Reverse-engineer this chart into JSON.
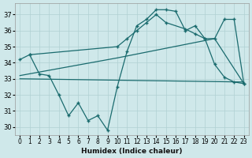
{
  "xlabel": "Humidex (Indice chaleur)",
  "bg_color": "#cfe8ea",
  "grid_color": "#b0d0d3",
  "line_color": "#1a6b6e",
  "xlim": [
    -0.5,
    23.5
  ],
  "ylim": [
    29.5,
    37.7
  ],
  "yticks": [
    30,
    31,
    32,
    33,
    34,
    35,
    36,
    37
  ],
  "xticks": [
    0,
    1,
    2,
    3,
    4,
    5,
    6,
    7,
    8,
    9,
    10,
    11,
    12,
    13,
    14,
    15,
    16,
    17,
    18,
    19,
    20,
    21,
    22,
    23
  ],
  "series": [
    {
      "x": [
        0,
        1,
        2,
        3,
        4,
        5,
        6,
        7,
        8,
        9,
        10,
        11,
        12,
        13,
        14,
        15,
        16,
        17,
        18,
        19,
        20,
        21,
        22,
        23
      ],
      "y": [
        34.2,
        34.5,
        33.3,
        33.2,
        32.0,
        30.7,
        31.5,
        30.4,
        30.7,
        29.8,
        32.5,
        34.7,
        36.3,
        36.7,
        37.3,
        37.3,
        37.2,
        36.0,
        36.3,
        35.5,
        33.9,
        33.1,
        32.8,
        32.7
      ],
      "marker": true
    },
    {
      "x": [
        0,
        23
      ],
      "y": [
        33.0,
        32.8
      ],
      "marker": false
    },
    {
      "x": [
        0,
        10,
        20,
        23
      ],
      "y": [
        33.2,
        34.3,
        35.5,
        32.7
      ],
      "marker": false
    },
    {
      "x": [
        1,
        10,
        11,
        12,
        13,
        14,
        15,
        17,
        18,
        19,
        20,
        21,
        22,
        23
      ],
      "y": [
        34.5,
        35.0,
        35.5,
        36.0,
        36.5,
        37.0,
        36.5,
        36.1,
        35.8,
        35.5,
        35.5,
        36.7,
        36.7,
        32.7
      ],
      "marker": true
    }
  ]
}
